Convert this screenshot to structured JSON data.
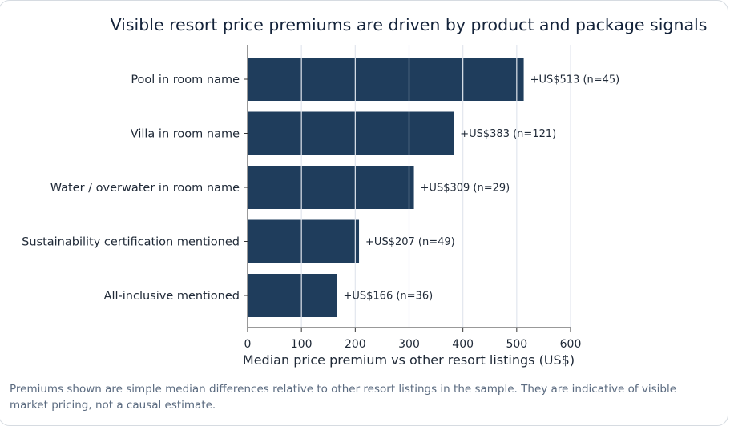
{
  "chart_data": {
    "type": "bar",
    "orientation": "horizontal",
    "title": "Visible resort price premiums are driven by product and package signals",
    "xlabel": "Median price premium vs other resort listings (US$)",
    "ylabel": "",
    "xlim": [
      0,
      600
    ],
    "xticks": [
      0,
      100,
      200,
      300,
      400,
      500,
      600
    ],
    "grid": "vertical",
    "categories": [
      "Pool in room name",
      "Villa in room name",
      "Water / overwater in room name",
      "Sustainability certification mentioned",
      "All-inclusive mentioned"
    ],
    "values": [
      513,
      383,
      309,
      207,
      166
    ],
    "n": [
      45,
      121,
      29,
      49,
      36
    ],
    "data_labels": [
      "+US$513  (n=45)",
      "+US$383  (n=121)",
      "+US$309  (n=29)",
      "+US$207  (n=49)",
      "+US$166  (n=36)"
    ],
    "bar_color": "#1f3d5c"
  },
  "footnote": "Premiums shown are simple median differences relative to other resort listings in the sample. They are indicative of visible market pricing, not a causal estimate."
}
